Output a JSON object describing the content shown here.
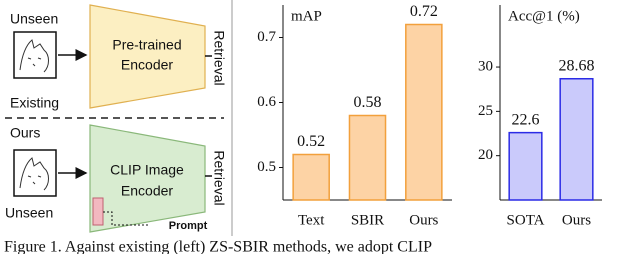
{
  "diagram": {
    "unseen_top": "Unseen",
    "encoder_top": [
      "Pre-trained",
      "Encoder"
    ],
    "retrieval_top": "Retrieval",
    "existing": "Existing",
    "ours": "Ours",
    "encoder_bottom": [
      "CLIP Image",
      "Encoder"
    ],
    "retrieval_bottom": "Retrieval",
    "prompt": "Prompt",
    "unseen_bottom": "Unseen"
  },
  "chart_data": [
    {
      "type": "bar",
      "title": "mAP",
      "categories": [
        "Text",
        "SBIR",
        "Ours"
      ],
      "values": [
        0.52,
        0.58,
        0.72
      ],
      "color": "#fdd3a5",
      "edge_color": "#f2a03c",
      "ylim": [
        0.45,
        0.75
      ],
      "yticks": [
        0.5,
        0.6,
        0.7
      ]
    },
    {
      "type": "bar",
      "title": "Acc@1 (%)",
      "categories": [
        "SOTA",
        "Ours"
      ],
      "values": [
        22.6,
        28.68
      ],
      "color": "#cacafb",
      "edge_color": "#2b2be6",
      "ylim": [
        15,
        37
      ],
      "yticks": [
        20,
        25,
        30
      ]
    }
  ],
  "caption": "Figure 1. Against existing (left) ZS-SBIR methods, we adopt CLIP"
}
